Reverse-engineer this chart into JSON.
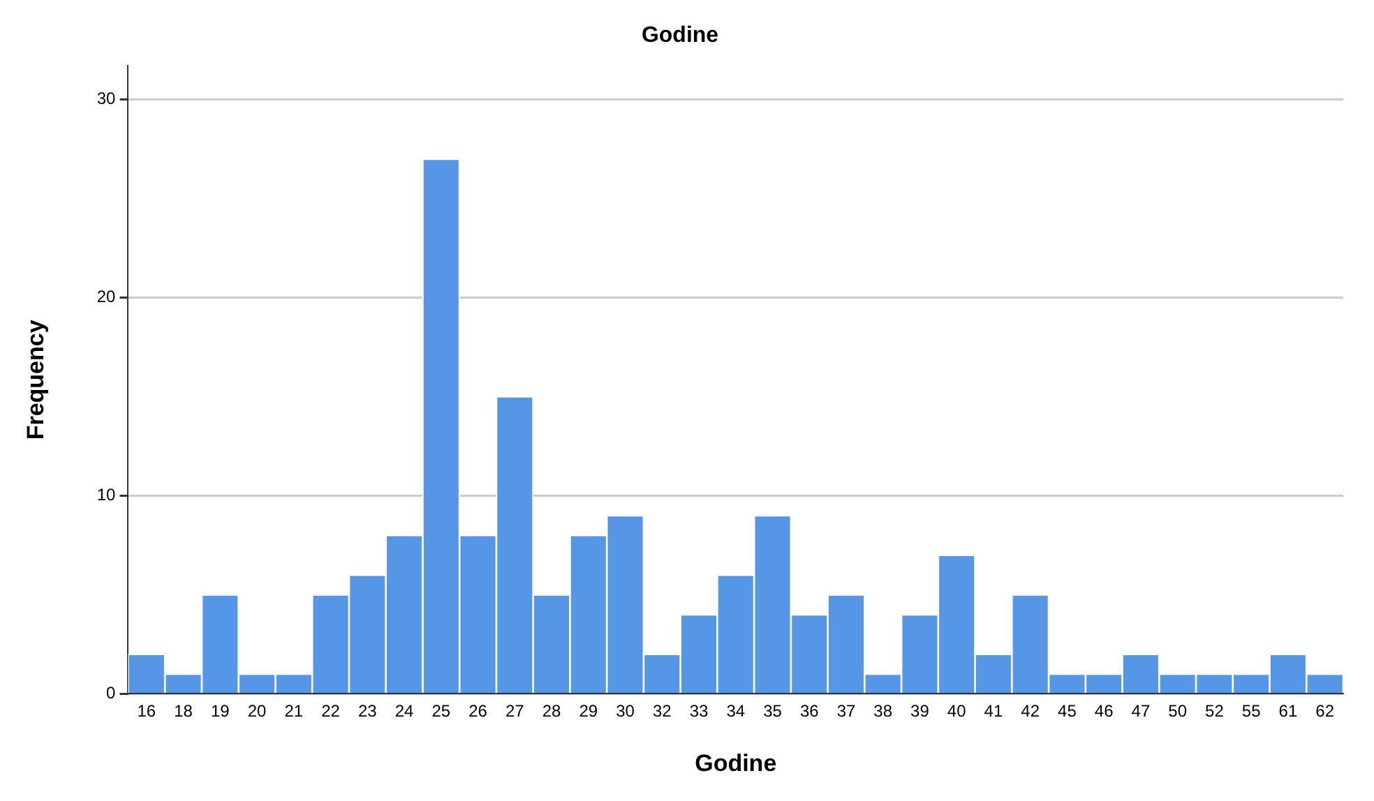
{
  "chart_data": {
    "type": "bar",
    "title": "Godine",
    "xlabel": "Godine",
    "ylabel": "Frequency",
    "categories": [
      "16",
      "18",
      "19",
      "20",
      "21",
      "22",
      "23",
      "24",
      "25",
      "26",
      "27",
      "28",
      "29",
      "30",
      "32",
      "33",
      "34",
      "35",
      "36",
      "37",
      "38",
      "39",
      "40",
      "41",
      "42",
      "45",
      "46",
      "47",
      "50",
      "52",
      "55",
      "61",
      "62"
    ],
    "values": [
      2,
      1,
      5,
      1,
      1,
      5,
      6,
      8,
      27,
      8,
      15,
      5,
      8,
      9,
      2,
      4,
      6,
      9,
      4,
      5,
      1,
      4,
      7,
      2,
      5,
      1,
      1,
      2,
      1,
      1,
      1,
      2,
      1
    ],
    "color": "#5596e6",
    "ylim": [
      0,
      31.7
    ],
    "yticks": [
      0,
      10,
      20,
      30
    ],
    "grid": "y",
    "legend": false
  }
}
